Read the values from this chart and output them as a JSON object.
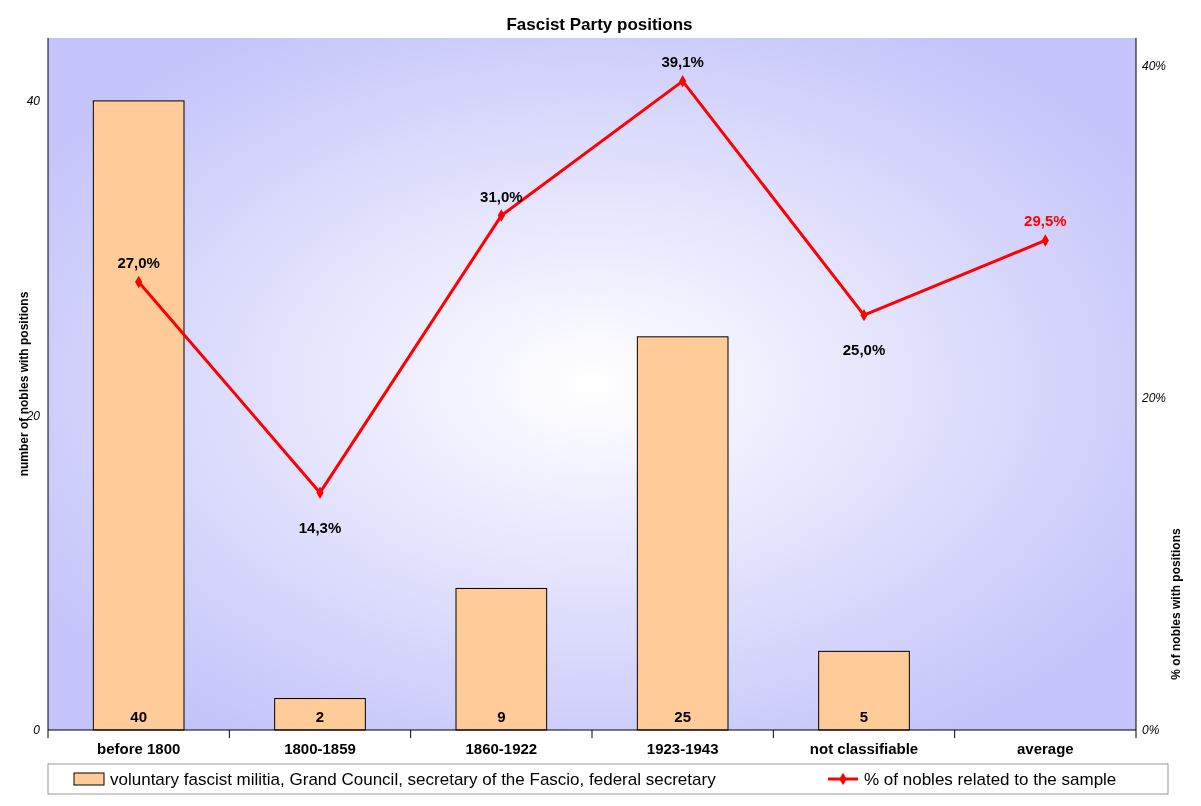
{
  "chart_data": {
    "type": "bar",
    "title": "Fascist Party positions",
    "ylabel": "number of nobles with positions",
    "y2label": "% of nobles with positions",
    "categories": [
      "before 1800",
      "1800-1859",
      "1860-1922",
      "1923-1943",
      "not classifiable",
      "average"
    ],
    "series": [
      {
        "name": "voluntary fascist militia, Grand Council, secretary of the Fascio, federal secretary",
        "color": "#ffcc99",
        "values": [
          40,
          2,
          9,
          25,
          5,
          null
        ],
        "value_labels": [
          "40",
          "2",
          "9",
          "25",
          "5",
          null
        ]
      },
      {
        "name": "% of nobles related to the sample",
        "type": "line",
        "axis": "y2",
        "color": "#ff0000",
        "marker": "diamond",
        "values": [
          27.0,
          14.3,
          31.0,
          39.1,
          25.0,
          29.5
        ],
        "value_labels": [
          "27,0%",
          "14,3%",
          "31,0%",
          "39,1%",
          "25,0%",
          "29,5%"
        ]
      }
    ],
    "ylim": [
      0,
      44
    ],
    "yticks": [
      0,
      20,
      40
    ],
    "y2lim": [
      0,
      41.7
    ],
    "y2ticks": [
      {
        "value": 0,
        "label": "0%"
      },
      {
        "value": 20,
        "label": "20%"
      },
      {
        "value": 40,
        "label": "40%"
      }
    ],
    "grid": false,
    "legend": "bottom"
  }
}
